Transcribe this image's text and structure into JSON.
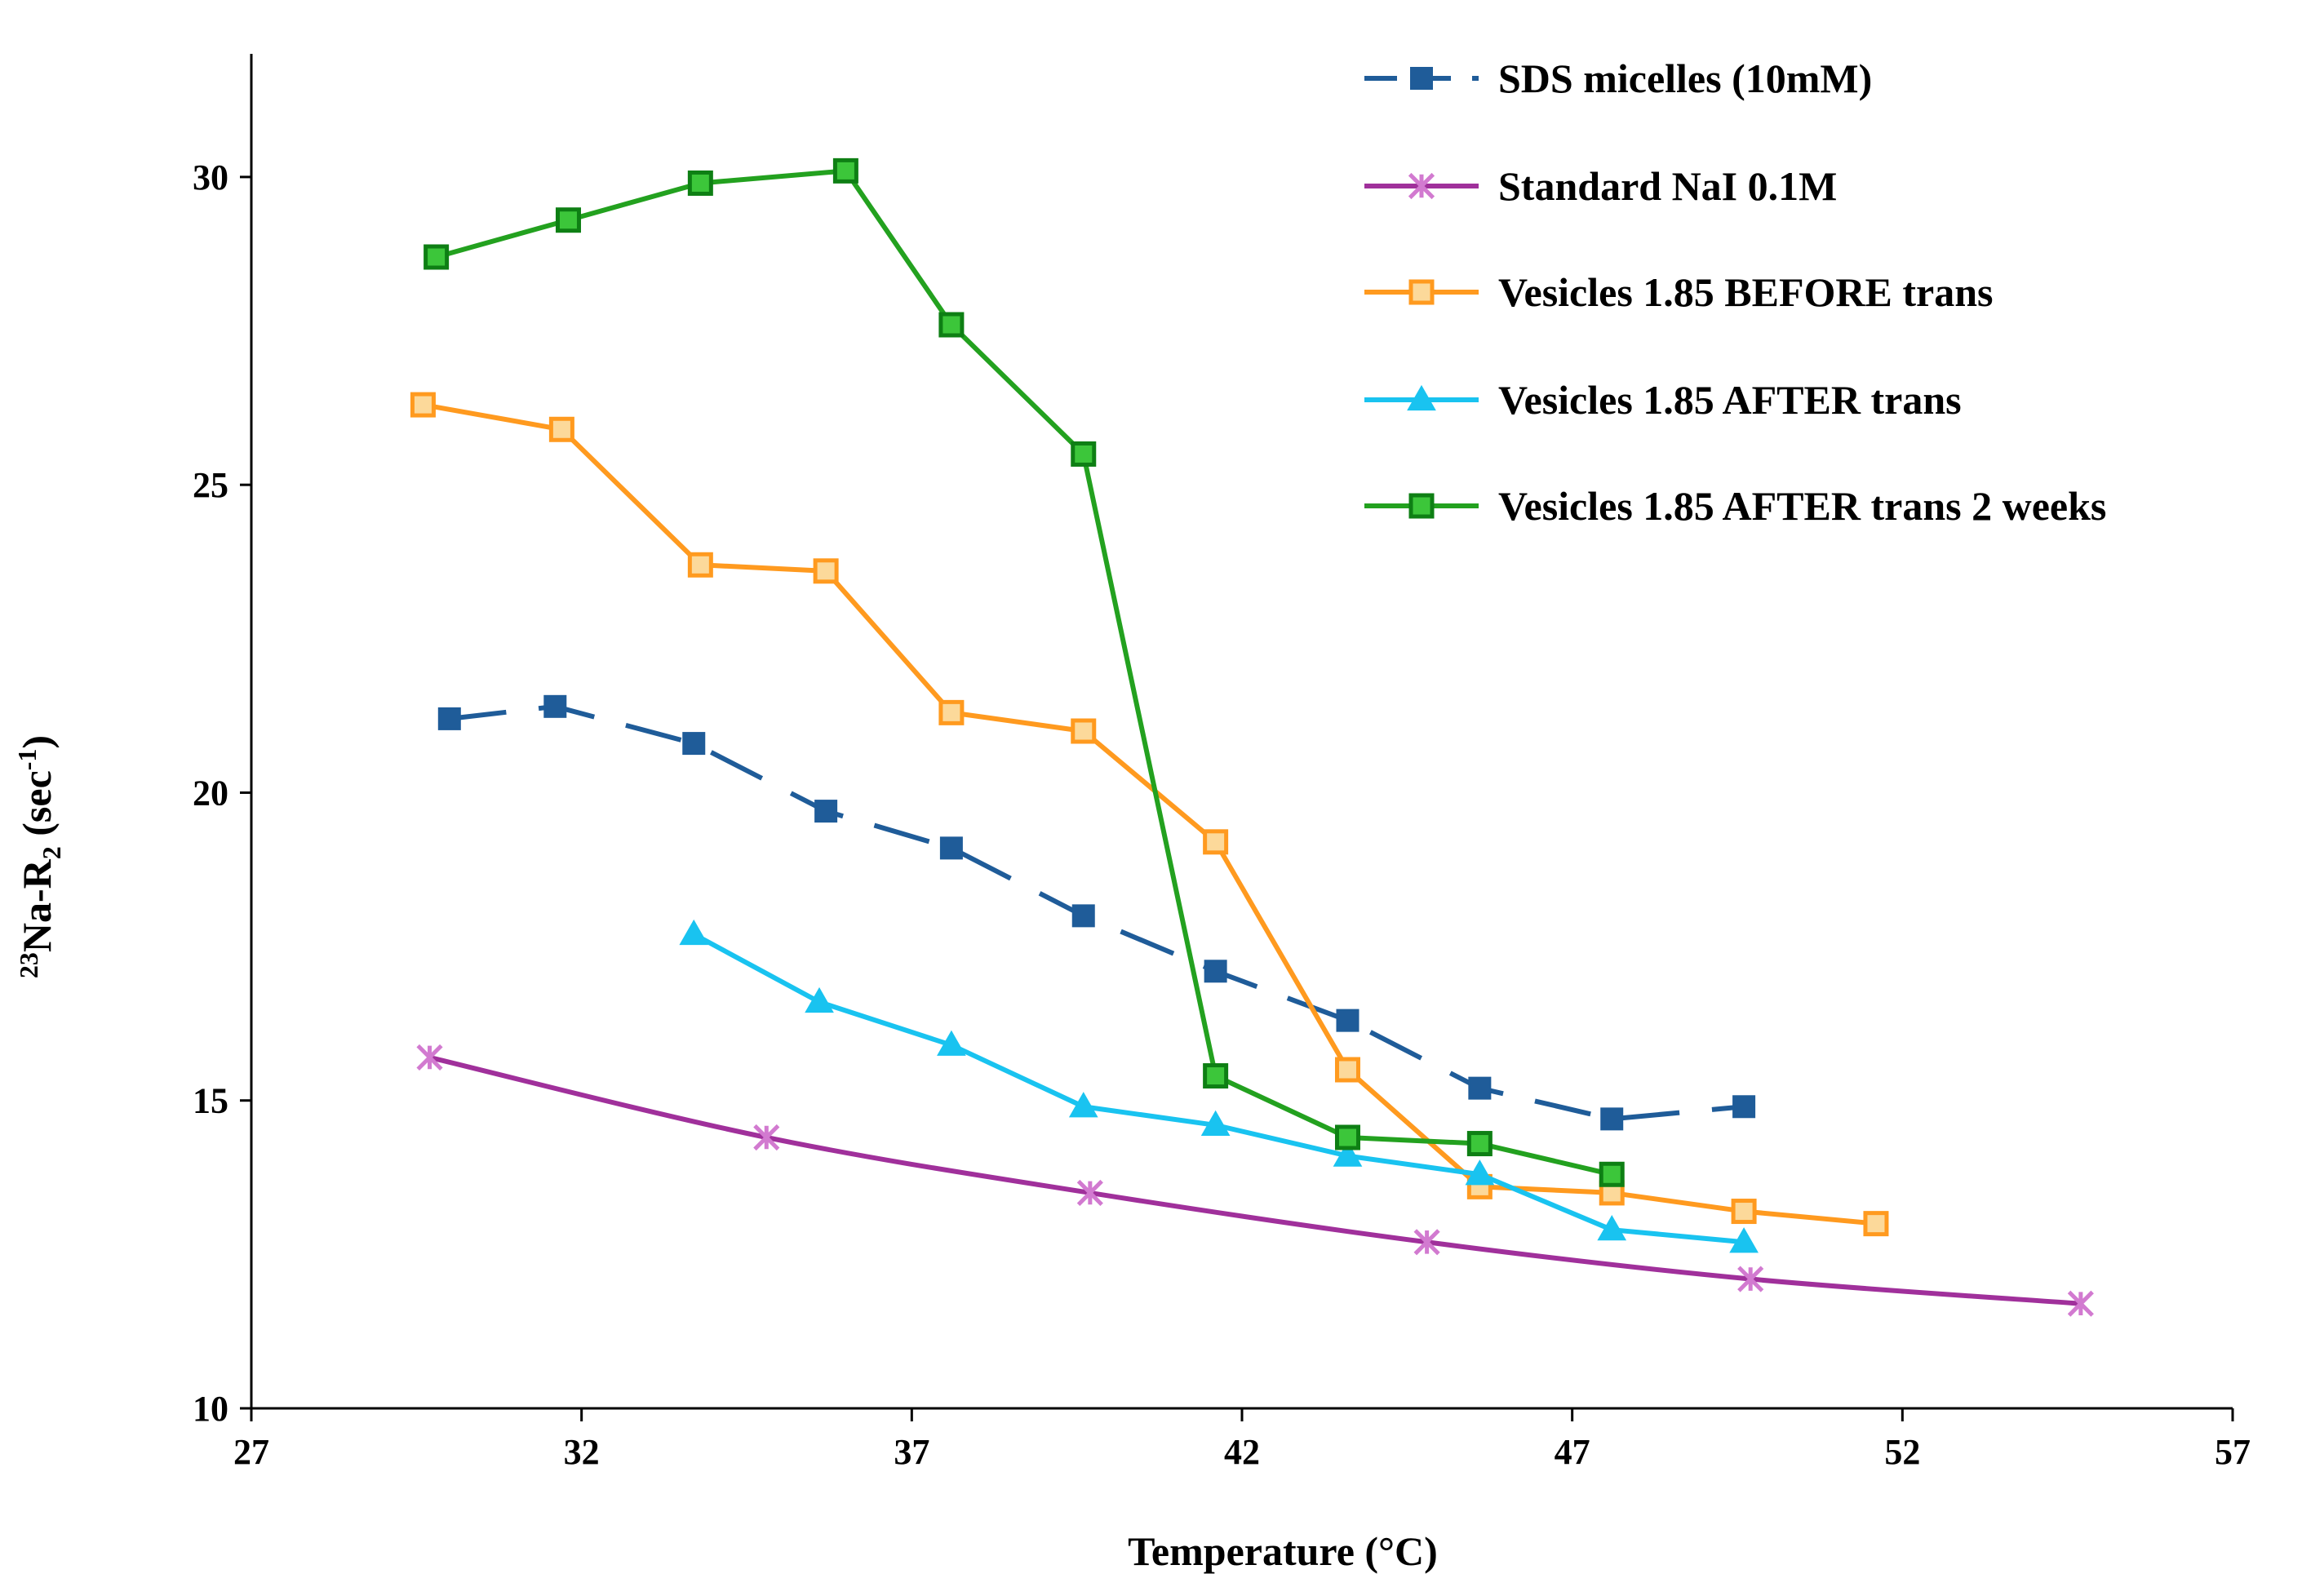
{
  "chart_data": {
    "type": "line",
    "xlabel": "Temperature (°C)",
    "ylabel": {
      "prefix_sup": "23",
      "main": "Na-R",
      "sub": "2",
      "unit_open": " (sec",
      "unit_sup": "-1",
      "unit_close": ")"
    },
    "xlim": [
      27,
      57
    ],
    "ylim": [
      10,
      32
    ],
    "xticks": [
      27,
      32,
      37,
      42,
      47,
      52,
      57
    ],
    "yticks": [
      10,
      15,
      20,
      25,
      30
    ],
    "grid": false,
    "legend_position": "top-right",
    "series": [
      {
        "name": "SDS micelles (10mM)",
        "color": "#1f5c99",
        "dash": true,
        "marker": "square-filled",
        "x": [
          30.0,
          31.6,
          33.7,
          35.7,
          37.6,
          39.6,
          41.6,
          43.6,
          45.6,
          47.6,
          49.6
        ],
        "y": [
          21.2,
          21.4,
          20.8,
          19.7,
          19.1,
          18.0,
          17.1,
          16.3,
          15.2,
          14.7,
          14.9
        ]
      },
      {
        "name": "Standard NaI 0.1M",
        "color": "#a0309b",
        "dash": false,
        "marker": "star",
        "x": [
          29.7,
          34.8,
          39.7,
          44.8,
          49.7,
          54.7
        ],
        "y": [
          15.7,
          14.4,
          13.5,
          12.7,
          12.1,
          11.7
        ]
      },
      {
        "name": "Vesicles 1.85 BEFORE trans",
        "color": "#ff9a1f",
        "dash": false,
        "marker": "square-open",
        "x": [
          29.6,
          31.7,
          33.8,
          35.7,
          37.6,
          39.6,
          41.6,
          43.6,
          45.6,
          47.6,
          49.6,
          51.6
        ],
        "y": [
          26.3,
          25.9,
          23.7,
          23.6,
          21.3,
          21.0,
          19.2,
          15.5,
          13.6,
          13.5,
          13.2,
          13.0
        ]
      },
      {
        "name": "Vesicles 1.85 AFTER trans",
        "color": "#19c3f0",
        "dash": false,
        "marker": "triangle",
        "x": [
          33.7,
          35.6,
          37.6,
          39.6,
          41.6,
          43.6,
          45.6,
          47.6,
          49.6
        ],
        "y": [
          17.7,
          16.6,
          15.9,
          14.9,
          14.6,
          14.1,
          13.8,
          12.9,
          12.7
        ]
      },
      {
        "name": "Vesicles 1.85 AFTER trans 2 weeks",
        "color": "#23a11f",
        "dash": false,
        "marker": "square-green",
        "x": [
          29.8,
          31.8,
          33.8,
          36.0,
          37.6,
          39.6,
          41.6,
          43.6,
          45.6,
          47.6
        ],
        "y": [
          28.7,
          29.3,
          29.9,
          30.1,
          27.6,
          25.5,
          15.4,
          14.4,
          14.3,
          13.8
        ]
      }
    ]
  }
}
